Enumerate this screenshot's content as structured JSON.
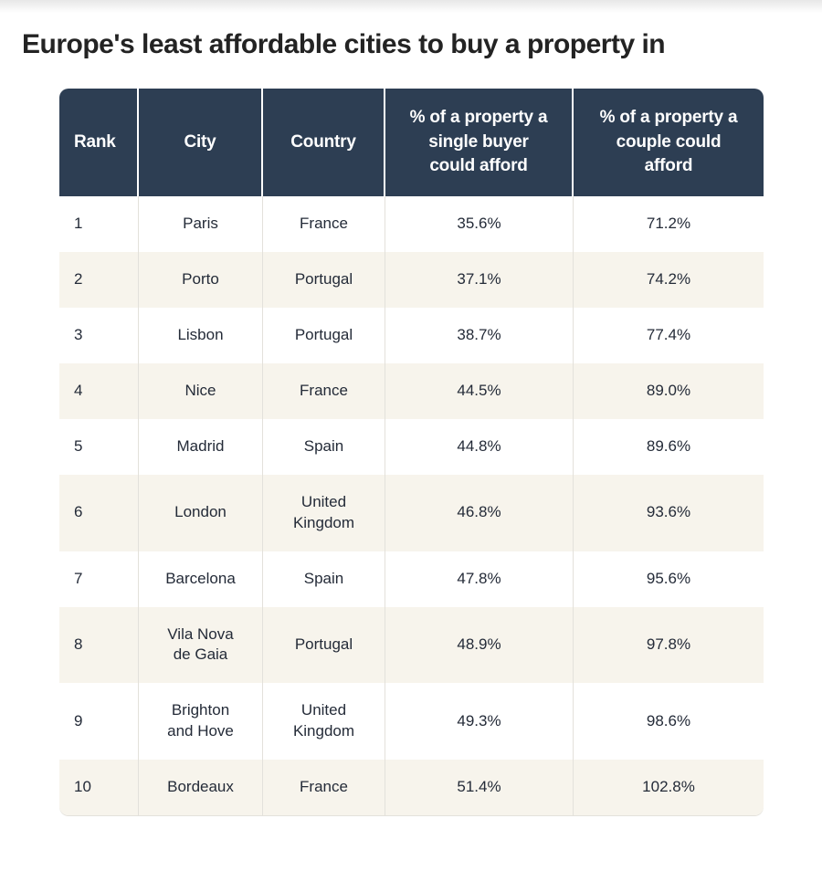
{
  "page": {
    "title": "Europe's least affordable cities to buy a property in"
  },
  "colors": {
    "header_bg": "#2d3e53",
    "header_text": "#ffffff",
    "header_divider": "#ffffff",
    "row_alt_bg": "#f7f4ec",
    "row_bg": "#ffffff",
    "body_text": "#242b38",
    "title_text": "#232323",
    "divider": "#e3e1db",
    "page_bg": "#ffffff"
  },
  "table": {
    "columns": [
      {
        "key": "rank",
        "label": "Rank"
      },
      {
        "key": "city",
        "label": "City"
      },
      {
        "key": "country",
        "label": "Country"
      },
      {
        "key": "single_buyer_pct",
        "label": "% of a property a single buyer could afford"
      },
      {
        "key": "couple_pct",
        "label": "% of a property a couple could afford"
      }
    ],
    "rows": [
      {
        "rank": "1",
        "city": "Paris",
        "country": "France",
        "single_buyer_pct": "35.6%",
        "couple_pct": "71.2%"
      },
      {
        "rank": "2",
        "city": "Porto",
        "country": "Portugal",
        "single_buyer_pct": "37.1%",
        "couple_pct": "74.2%"
      },
      {
        "rank": "3",
        "city": "Lisbon",
        "country": "Portugal",
        "single_buyer_pct": "38.7%",
        "couple_pct": "77.4%"
      },
      {
        "rank": "4",
        "city": "Nice",
        "country": "France",
        "single_buyer_pct": "44.5%",
        "couple_pct": "89.0%"
      },
      {
        "rank": "5",
        "city": "Madrid",
        "country": "Spain",
        "single_buyer_pct": "44.8%",
        "couple_pct": "89.6%"
      },
      {
        "rank": "6",
        "city": "London",
        "country": "United Kingdom",
        "single_buyer_pct": "46.8%",
        "couple_pct": "93.6%"
      },
      {
        "rank": "7",
        "city": "Barcelona",
        "country": "Spain",
        "single_buyer_pct": "47.8%",
        "couple_pct": "95.6%"
      },
      {
        "rank": "8",
        "city": "Vila Nova de Gaia",
        "country": "Portugal",
        "single_buyer_pct": "48.9%",
        "couple_pct": "97.8%"
      },
      {
        "rank": "9",
        "city": "Brighton and Hove",
        "country": "United Kingdom",
        "single_buyer_pct": "49.3%",
        "couple_pct": "98.6%"
      },
      {
        "rank": "10",
        "city": "Bordeaux",
        "country": "France",
        "single_buyer_pct": "51.4%",
        "couple_pct": "102.8%"
      }
    ]
  },
  "chart_data": {
    "type": "table",
    "title": "Europe's least affordable cities to buy a property in",
    "columns": [
      "Rank",
      "City",
      "Country",
      "% of a property a single buyer could afford",
      "% of a property a couple could afford"
    ],
    "rows": [
      [
        1,
        "Paris",
        "France",
        35.6,
        71.2
      ],
      [
        2,
        "Porto",
        "Portugal",
        37.1,
        74.2
      ],
      [
        3,
        "Lisbon",
        "Portugal",
        38.7,
        77.4
      ],
      [
        4,
        "Nice",
        "France",
        44.5,
        89.0
      ],
      [
        5,
        "Madrid",
        "Spain",
        44.8,
        89.6
      ],
      [
        6,
        "London",
        "United Kingdom",
        46.8,
        93.6
      ],
      [
        7,
        "Barcelona",
        "Spain",
        47.8,
        95.6
      ],
      [
        8,
        "Vila Nova de Gaia",
        "Portugal",
        48.9,
        97.8
      ],
      [
        9,
        "Brighton and Hove",
        "United Kingdom",
        49.3,
        98.6
      ],
      [
        10,
        "Bordeaux",
        "France",
        51.4,
        102.8
      ]
    ],
    "units": "percent",
    "notes": "Alternating row shading; values are percentages of a property affordable by single buyers vs couples."
  }
}
